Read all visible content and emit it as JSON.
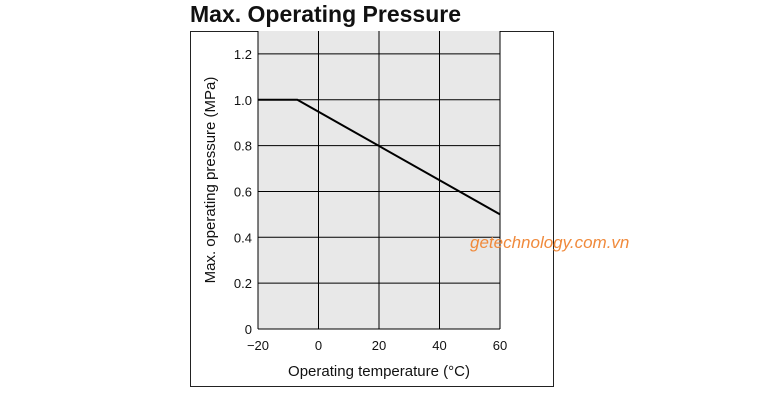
{
  "chart_data": {
    "type": "line",
    "title": "Max. Operating Pressure",
    "xlabel": "Operating temperature (°C)",
    "ylabel": "Max. operating pressure (MPa)",
    "xlim": [
      -20,
      60
    ],
    "ylim": [
      0,
      1.3
    ],
    "xticks": [
      -20,
      0,
      20,
      40,
      60
    ],
    "xtick_labels": [
      "−20",
      "0",
      "20",
      "40",
      "60"
    ],
    "yticks": [
      0,
      0.2,
      0.4,
      0.6,
      0.8,
      1.0,
      1.2
    ],
    "ytick_labels": [
      "0",
      "0.2",
      "0.4",
      "0.6",
      "0.8",
      "1.0",
      "1.2"
    ],
    "grid": true,
    "series": [
      {
        "x": [
          -20,
          -7,
          60
        ],
        "y": [
          1.0,
          1.0,
          0.5
        ]
      }
    ],
    "colors": {
      "plot_background": "#e8e8e8",
      "line": "#000000",
      "grid": "#000000"
    }
  },
  "watermark": {
    "text": "getechnology.com.vn",
    "color": "#f08a3c"
  }
}
